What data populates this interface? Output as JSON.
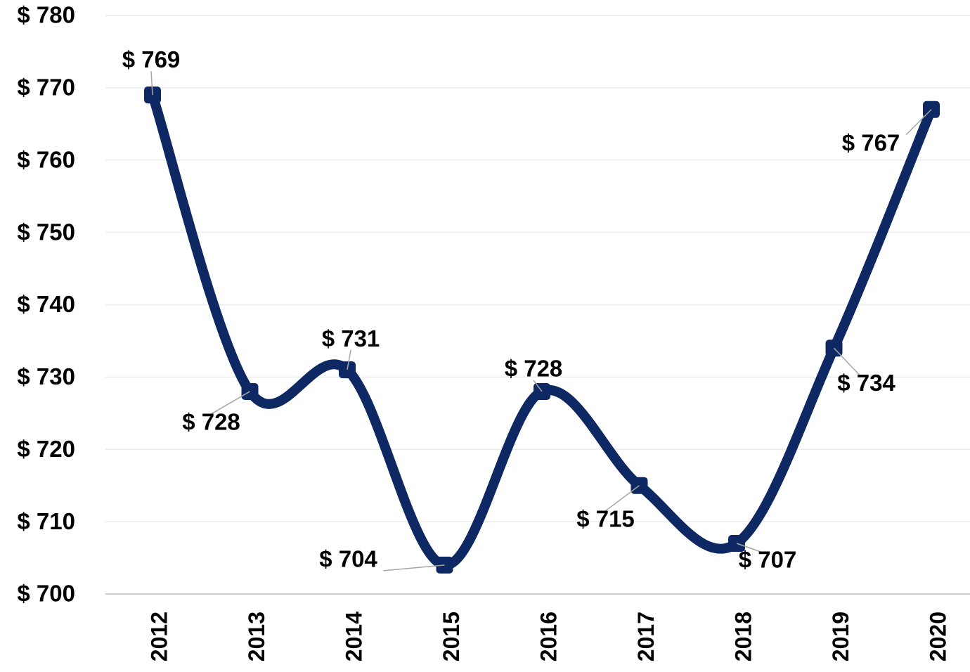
{
  "chart_data": {
    "type": "line",
    "categories": [
      "2012",
      "2013",
      "2014",
      "2015",
      "2016",
      "2017",
      "2018",
      "2019",
      "2020"
    ],
    "series": [
      {
        "color": "#0d2862",
        "values": [
          769,
          728,
          731,
          704,
          728,
          715,
          707,
          734,
          767
        ],
        "value_labels": [
          "$ 769",
          "$ 728",
          "$ 731",
          "$ 704",
          "$ 728",
          "$ 715",
          "$ 707",
          "$ 734",
          "$ 767"
        ]
      }
    ],
    "ylim": [
      700,
      780
    ],
    "yticks": [
      {
        "value": 700,
        "label": "$ 700"
      },
      {
        "value": 710,
        "label": "$ 710"
      },
      {
        "value": 720,
        "label": "$ 720"
      },
      {
        "value": 730,
        "label": "$ 730"
      },
      {
        "value": 740,
        "label": "$ 740"
      },
      {
        "value": 750,
        "label": "$ 750"
      },
      {
        "value": 760,
        "label": "$ 760"
      },
      {
        "value": 770,
        "label": "$ 770"
      },
      {
        "value": 780,
        "label": "$ 780"
      }
    ],
    "grid": true
  }
}
